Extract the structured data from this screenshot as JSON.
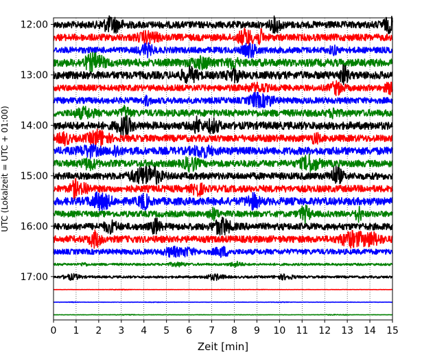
{
  "chart_data": {
    "type": "line",
    "xlabel": "Zeit  [min]",
    "ylabel": "UTC (Lokalzeit = UTC + 01:00)",
    "xlim": [
      0,
      15
    ],
    "x_ticks": [
      "0",
      "1",
      "2",
      "3",
      "4",
      "5",
      "6",
      "7",
      "8",
      "9",
      "10",
      "11",
      "12",
      "13",
      "14",
      "15"
    ],
    "y_ticks": [
      "12:00",
      "13:00",
      "14:00",
      "15:00",
      "16:00",
      "17:00"
    ],
    "y_tick_hours": [
      12,
      13,
      14,
      15,
      16,
      17
    ],
    "y_range_hours": [
      11.87,
      17.86
    ],
    "vertical_grid": "dotted",
    "colors": [
      "#000000",
      "#ff0000",
      "#0000ff",
      "#008000"
    ],
    "traces": [
      {
        "start": "12:00",
        "color": "#000000",
        "amplitude": 0.45
      },
      {
        "start": "12:15",
        "color": "#ff0000",
        "amplitude": 0.45
      },
      {
        "start": "12:30",
        "color": "#0000ff",
        "amplitude": 0.4
      },
      {
        "start": "12:45",
        "color": "#008000",
        "amplitude": 0.5
      },
      {
        "start": "13:00",
        "color": "#000000",
        "amplitude": 0.5
      },
      {
        "start": "13:15",
        "color": "#ff0000",
        "amplitude": 0.4
      },
      {
        "start": "13:30",
        "color": "#0000ff",
        "amplitude": 0.4
      },
      {
        "start": "13:45",
        "color": "#008000",
        "amplitude": 0.45
      },
      {
        "start": "14:00",
        "color": "#000000",
        "amplitude": 0.5
      },
      {
        "start": "14:15",
        "color": "#ff0000",
        "amplitude": 0.45
      },
      {
        "start": "14:30",
        "color": "#0000ff",
        "amplitude": 0.5
      },
      {
        "start": "14:45",
        "color": "#008000",
        "amplitude": 0.45
      },
      {
        "start": "15:00",
        "color": "#000000",
        "amplitude": 0.45
      },
      {
        "start": "15:15",
        "color": "#ff0000",
        "amplitude": 0.45
      },
      {
        "start": "15:30",
        "color": "#0000ff",
        "amplitude": 0.5
      },
      {
        "start": "15:45",
        "color": "#008000",
        "amplitude": 0.4
      },
      {
        "start": "16:00",
        "color": "#000000",
        "amplitude": 0.45
      },
      {
        "start": "16:15",
        "color": "#ff0000",
        "amplitude": 0.45
      },
      {
        "start": "16:30",
        "color": "#0000ff",
        "amplitude": 0.35
      },
      {
        "start": "16:45",
        "color": "#008000",
        "amplitude": 0.15
      },
      {
        "start": "17:00",
        "color": "#000000",
        "amplitude": 0.15
      },
      {
        "start": "17:15",
        "color": "#ff0000",
        "amplitude": 0.02
      },
      {
        "start": "17:30",
        "color": "#0000ff",
        "amplitude": 0.02
      },
      {
        "start": "17:45",
        "color": "#008000",
        "amplitude": 0.02
      }
    ]
  }
}
